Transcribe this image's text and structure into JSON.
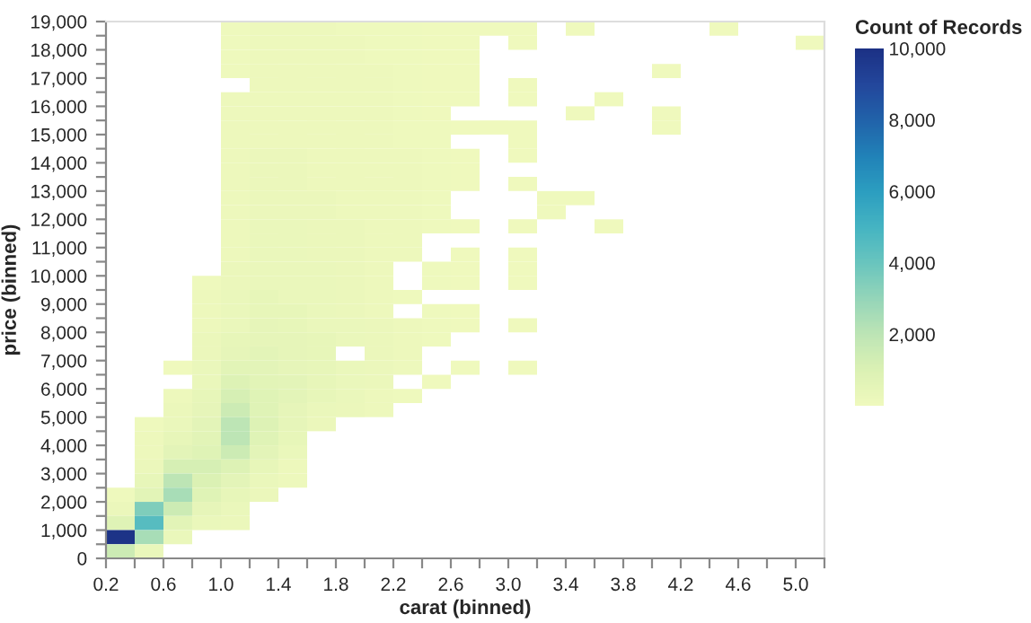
{
  "chart_data": {
    "type": "heatmap",
    "xlabel": "carat (binned)",
    "ylabel": "price (binned)",
    "clabel": "Count of Records",
    "xlim": [
      0.2,
      5.2
    ],
    "ylim": [
      0,
      19000
    ],
    "xticks": [
      0.2,
      {
        "value": 0.4,
        "label": null
      },
      0.6,
      {
        "value": 0.8,
        "label": null
      },
      {
        "value": 1.0,
        "label": "1.0"
      },
      {
        "value": 1.2,
        "label": null
      },
      1.4,
      {
        "value": 1.6,
        "label": null
      },
      1.8,
      {
        "value": 2.0,
        "label": null
      },
      2.2,
      {
        "value": 2.4,
        "label": null
      },
      2.6,
      {
        "value": 2.8,
        "label": null
      },
      {
        "value": 3.0,
        "label": "3.0"
      },
      {
        "value": 3.2,
        "label": null
      },
      3.4,
      {
        "value": 3.6,
        "label": null
      },
      3.8,
      {
        "value": 4.0,
        "label": null
      },
      4.2,
      {
        "value": 4.4,
        "label": null
      },
      4.6,
      {
        "value": 4.8,
        "label": null
      },
      {
        "value": 5.0,
        "label": "5.0"
      },
      {
        "value": 5.2,
        "label": null
      }
    ],
    "yticks": [
      0,
      {
        "value": 500,
        "label": null
      },
      {
        "value": 1000,
        "label": "1,000"
      },
      {
        "value": 1500,
        "label": null
      },
      {
        "value": 2000,
        "label": "2,000"
      },
      {
        "value": 2500,
        "label": null
      },
      {
        "value": 3000,
        "label": "3,000"
      },
      {
        "value": 3500,
        "label": null
      },
      {
        "value": 4000,
        "label": "4,000"
      },
      {
        "value": 4500,
        "label": null
      },
      {
        "value": 5000,
        "label": "5,000"
      },
      {
        "value": 5500,
        "label": null
      },
      {
        "value": 6000,
        "label": "6,000"
      },
      {
        "value": 6500,
        "label": null
      },
      {
        "value": 7000,
        "label": "7,000"
      },
      {
        "value": 7500,
        "label": null
      },
      {
        "value": 8000,
        "label": "8,000"
      },
      {
        "value": 8500,
        "label": null
      },
      {
        "value": 9000,
        "label": "9,000"
      },
      {
        "value": 9500,
        "label": null
      },
      {
        "value": 10000,
        "label": "10,000"
      },
      {
        "value": 10500,
        "label": null
      },
      {
        "value": 11000,
        "label": "11,000"
      },
      {
        "value": 11500,
        "label": null
      },
      {
        "value": 12000,
        "label": "12,000"
      },
      {
        "value": 12500,
        "label": null
      },
      {
        "value": 13000,
        "label": "13,000"
      },
      {
        "value": 13500,
        "label": null
      },
      {
        "value": 14000,
        "label": "14,000"
      },
      {
        "value": 14500,
        "label": null
      },
      {
        "value": 15000,
        "label": "15,000"
      },
      {
        "value": 15500,
        "label": null
      },
      {
        "value": 16000,
        "label": "16,000"
      },
      {
        "value": 16500,
        "label": null
      },
      {
        "value": 17000,
        "label": "17,000"
      },
      {
        "value": 17500,
        "label": null
      },
      {
        "value": 18000,
        "label": "18,000"
      },
      {
        "value": 18500,
        "label": null
      },
      {
        "value": 19000,
        "label": "19,000"
      }
    ],
    "clim": [
      0,
      10000
    ],
    "cticks": [
      {
        "value": 2000,
        "label": "2,000"
      },
      {
        "value": 4000,
        "label": "4,000"
      },
      {
        "value": 6000,
        "label": "6,000"
      },
      {
        "value": 8000,
        "label": "8,000"
      },
      {
        "value": 10000,
        "label": "10,000"
      }
    ],
    "cells": [
      [
        null,
        null,
        null,
        null,
        50,
        80,
        80,
        80,
        60,
        60,
        40,
        30,
        15,
        10,
        5,
        null,
        5,
        null,
        null,
        null,
        null,
        5,
        null,
        null,
        null
      ],
      [
        null,
        null,
        null,
        null,
        60,
        100,
        100,
        80,
        80,
        60,
        40,
        30,
        15,
        null,
        5,
        null,
        null,
        null,
        null,
        null,
        null,
        null,
        null,
        null,
        5
      ],
      [
        null,
        null,
        null,
        null,
        60,
        100,
        100,
        100,
        80,
        60,
        50,
        30,
        15,
        null,
        null,
        null,
        null,
        null,
        null,
        null,
        null,
        null,
        null,
        null,
        null
      ],
      [
        null,
        null,
        null,
        null,
        60,
        100,
        100,
        100,
        80,
        80,
        50,
        30,
        15,
        null,
        null,
        null,
        null,
        null,
        null,
        5,
        null,
        null,
        null,
        null,
        null
      ],
      [
        null,
        null,
        null,
        null,
        null,
        120,
        120,
        100,
        100,
        80,
        50,
        30,
        15,
        null,
        5,
        null,
        null,
        null,
        null,
        null,
        null,
        null,
        null,
        null,
        null
      ],
      [
        null,
        null,
        null,
        null,
        80,
        120,
        120,
        120,
        100,
        80,
        50,
        30,
        15,
        null,
        5,
        null,
        null,
        5,
        null,
        null,
        null,
        null,
        null,
        null,
        null
      ],
      [
        null,
        null,
        null,
        null,
        80,
        150,
        150,
        120,
        100,
        80,
        60,
        30,
        null,
        null,
        null,
        null,
        5,
        null,
        null,
        5,
        null,
        null,
        null,
        null,
        null
      ],
      [
        null,
        null,
        null,
        null,
        80,
        150,
        150,
        150,
        100,
        100,
        60,
        40,
        20,
        10,
        5,
        null,
        null,
        null,
        null,
        5,
        null,
        null,
        null,
        null,
        null
      ],
      [
        null,
        null,
        null,
        null,
        100,
        150,
        150,
        150,
        100,
        100,
        60,
        40,
        null,
        null,
        5,
        null,
        null,
        null,
        null,
        null,
        null,
        null,
        null,
        null,
        null
      ],
      [
        null,
        null,
        null,
        null,
        100,
        200,
        200,
        150,
        150,
        100,
        80,
        40,
        20,
        null,
        5,
        null,
        null,
        null,
        null,
        null,
        null,
        null,
        null,
        null,
        null
      ],
      [
        null,
        null,
        null,
        null,
        100,
        200,
        200,
        150,
        150,
        100,
        80,
        40,
        20,
        null,
        null,
        null,
        null,
        null,
        null,
        null,
        null,
        null,
        null,
        null,
        null
      ],
      [
        null,
        null,
        null,
        null,
        100,
        200,
        200,
        150,
        150,
        100,
        80,
        40,
        20,
        null,
        5,
        null,
        null,
        null,
        null,
        null,
        null,
        null,
        null,
        null,
        null
      ],
      [
        null,
        null,
        null,
        null,
        100,
        200,
        200,
        200,
        150,
        150,
        80,
        40,
        null,
        null,
        null,
        5,
        5,
        null,
        null,
        null,
        null,
        null,
        null,
        null,
        null
      ],
      [
        null,
        null,
        null,
        null,
        100,
        200,
        200,
        200,
        150,
        150,
        80,
        40,
        null,
        null,
        null,
        5,
        null,
        null,
        null,
        null,
        null,
        null,
        null,
        null,
        null
      ],
      [
        null,
        null,
        null,
        null,
        150,
        250,
        250,
        200,
        200,
        150,
        80,
        50,
        20,
        null,
        5,
        null,
        null,
        5,
        null,
        null,
        null,
        null,
        null,
        null,
        null
      ],
      [
        null,
        null,
        null,
        null,
        150,
        250,
        250,
        200,
        200,
        150,
        80,
        null,
        null,
        null,
        null,
        null,
        null,
        null,
        null,
        null,
        null,
        null,
        null,
        null,
        null
      ],
      [
        null,
        null,
        null,
        null,
        150,
        250,
        250,
        200,
        200,
        150,
        80,
        null,
        20,
        null,
        5,
        null,
        null,
        null,
        null,
        null,
        null,
        null,
        null,
        null,
        null
      ],
      [
        null,
        null,
        null,
        null,
        200,
        300,
        300,
        250,
        200,
        150,
        null,
        40,
        20,
        null,
        5,
        null,
        null,
        null,
        null,
        null,
        null,
        null,
        null,
        null,
        null
      ],
      [
        null,
        null,
        null,
        50,
        200,
        300,
        300,
        250,
        200,
        150,
        null,
        40,
        20,
        null,
        5,
        null,
        null,
        null,
        null,
        null,
        null,
        null,
        null,
        null,
        null
      ],
      [
        null,
        null,
        null,
        100,
        300,
        400,
        300,
        300,
        200,
        150,
        60,
        null,
        null,
        null,
        null,
        null,
        null,
        null,
        null,
        null,
        null,
        null,
        null,
        null,
        null
      ],
      [
        null,
        null,
        null,
        100,
        300,
        400,
        400,
        300,
        200,
        150,
        null,
        50,
        30,
        null,
        null,
        null,
        null,
        null,
        null,
        null,
        null,
        null,
        null,
        null,
        null
      ],
      [
        null,
        null,
        null,
        150,
        300,
        500,
        400,
        300,
        300,
        200,
        100,
        50,
        30,
        null,
        5,
        null,
        null,
        null,
        null,
        null,
        null,
        null,
        null,
        null,
        null
      ],
      [
        null,
        null,
        null,
        200,
        400,
        500,
        500,
        400,
        300,
        200,
        100,
        50,
        null,
        null,
        null,
        null,
        null,
        null,
        null,
        null,
        null,
        null,
        null,
        null,
        null
      ],
      [
        null,
        null,
        null,
        200,
        500,
        600,
        500,
        400,
        null,
        200,
        100,
        null,
        null,
        null,
        null,
        null,
        null,
        null,
        null,
        null,
        null,
        null,
        null,
        null,
        null
      ],
      [
        null,
        null,
        20,
        300,
        700,
        600,
        500,
        400,
        300,
        200,
        100,
        null,
        20,
        null,
        5,
        null,
        null,
        null,
        null,
        null,
        null,
        null,
        null,
        null,
        null
      ],
      [
        null,
        null,
        null,
        300,
        900,
        700,
        600,
        400,
        300,
        200,
        null,
        30,
        null,
        null,
        null,
        null,
        null,
        null,
        null,
        null,
        null,
        null,
        null,
        null,
        null
      ],
      [
        null,
        null,
        100,
        400,
        1200,
        800,
        600,
        400,
        300,
        150,
        50,
        null,
        null,
        null,
        null,
        null,
        null,
        null,
        null,
        null,
        null,
        null,
        null,
        null,
        null
      ],
      [
        null,
        null,
        200,
        500,
        1500,
        800,
        500,
        300,
        200,
        100,
        null,
        null,
        null,
        null,
        null,
        null,
        null,
        null,
        null,
        null,
        null,
        null,
        null,
        null,
        null
      ],
      [
        null,
        50,
        300,
        600,
        2000,
        900,
        500,
        200,
        null,
        null,
        null,
        null,
        null,
        null,
        null,
        null,
        null,
        null,
        null,
        null,
        null,
        null,
        null,
        null,
        null
      ],
      [
        null,
        100,
        400,
        700,
        2000,
        800,
        400,
        null,
        null,
        null,
        null,
        null,
        null,
        null,
        null,
        null,
        null,
        null,
        null,
        null,
        null,
        null,
        null,
        null,
        null
      ],
      [
        null,
        150,
        600,
        800,
        1500,
        600,
        300,
        null,
        null,
        null,
        null,
        null,
        null,
        null,
        null,
        null,
        null,
        null,
        null,
        null,
        null,
        null,
        null,
        null,
        null
      ],
      [
        null,
        200,
        1200,
        1200,
        900,
        400,
        150,
        null,
        null,
        null,
        null,
        null,
        null,
        null,
        null,
        null,
        null,
        null,
        null,
        null,
        null,
        null,
        null,
        null,
        null
      ],
      [
        null,
        400,
        2000,
        1000,
        600,
        300,
        100,
        null,
        null,
        null,
        null,
        null,
        null,
        null,
        null,
        null,
        null,
        null,
        null,
        null,
        null,
        null,
        null,
        null,
        null
      ],
      [
        50,
        700,
        2500,
        800,
        400,
        200,
        null,
        null,
        null,
        null,
        null,
        null,
        null,
        null,
        null,
        null,
        null,
        null,
        null,
        null,
        null,
        null,
        null,
        null,
        null
      ],
      [
        200,
        3500,
        1500,
        500,
        300,
        null,
        null,
        null,
        null,
        null,
        null,
        null,
        null,
        null,
        null,
        null,
        null,
        null,
        null,
        null,
        null,
        null,
        null,
        null,
        null
      ],
      [
        800,
        4500,
        700,
        300,
        200,
        null,
        null,
        null,
        null,
        null,
        null,
        null,
        null,
        null,
        null,
        null,
        null,
        null,
        null,
        null,
        null,
        null,
        null,
        null,
        null
      ],
      [
        9900,
        2500,
        300,
        null,
        null,
        null,
        null,
        null,
        null,
        null,
        null,
        null,
        null,
        null,
        null,
        null,
        null,
        null,
        null,
        null,
        null,
        null,
        null,
        null,
        null
      ],
      [
        1500,
        300,
        null,
        null,
        null,
        null,
        null,
        null,
        null,
        null,
        null,
        null,
        null,
        null,
        null,
        null,
        null,
        null,
        null,
        null,
        null,
        null,
        null,
        null,
        null
      ]
    ]
  }
}
